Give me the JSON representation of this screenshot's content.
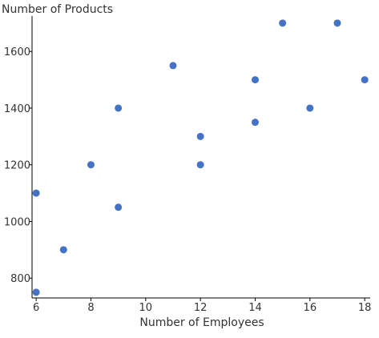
{
  "chart_data": {
    "type": "scatter",
    "xlabel": "Number of Employees",
    "ylabel": "Number of Products",
    "x": [
      6,
      6,
      7,
      8,
      9,
      9,
      11,
      12,
      12,
      14,
      14,
      15,
      16,
      17,
      18
    ],
    "y": [
      750,
      1100,
      900,
      1200,
      1050,
      1400,
      1550,
      1200,
      1300,
      1350,
      1500,
      1700,
      1400,
      1700,
      1500
    ],
    "xlim": [
      5.85,
      18.2
    ],
    "ylim": [
      730,
      1725
    ],
    "xticks": [
      6,
      8,
      10,
      12,
      14,
      16,
      18
    ],
    "yticks": [
      800,
      1000,
      1200,
      1400,
      1600
    ],
    "grid": false,
    "marker_color": "#4472c4",
    "axis_color": "#000000",
    "text_color": "#333333"
  }
}
